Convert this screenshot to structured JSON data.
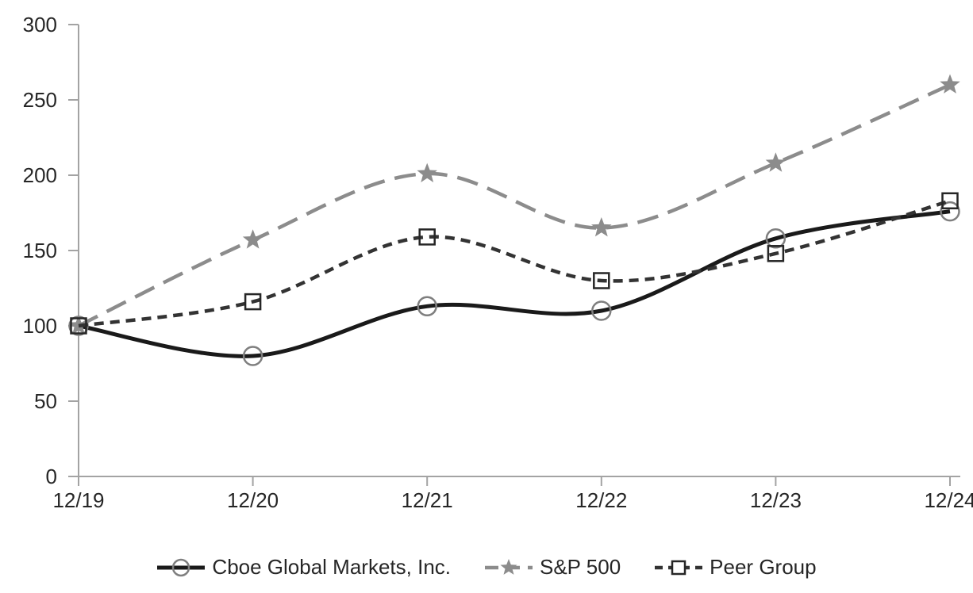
{
  "chart_data": {
    "type": "line",
    "title": "",
    "xlabel": "",
    "ylabel": "",
    "categories": [
      "12/19",
      "12/20",
      "12/21",
      "12/22",
      "12/23",
      "12/24"
    ],
    "series": [
      {
        "id": "cboe",
        "name": "Cboe Global Markets, Inc.",
        "values": [
          100,
          80,
          113,
          110,
          158,
          176
        ],
        "color": "#1a1a1a",
        "line_style": "solid",
        "marker": "circle",
        "marker_color": "#7f7f7f"
      },
      {
        "id": "sp500",
        "name": "S&P 500",
        "values": [
          100,
          157,
          201,
          165,
          208,
          260
        ],
        "color": "#8c8c8c",
        "line_style": "long-dash",
        "marker": "star",
        "marker_color": "#8c8c8c"
      },
      {
        "id": "peer-group",
        "name": "Peer Group",
        "values": [
          100,
          116,
          159,
          130,
          148,
          183
        ],
        "color": "#333333",
        "line_style": "short-dash",
        "marker": "square",
        "marker_color": "#262626"
      }
    ],
    "ylim": [
      0,
      300
    ],
    "yticks": [
      0,
      50,
      100,
      150,
      200,
      250,
      300
    ],
    "grid": false,
    "legend_position": "bottom"
  },
  "colors": {
    "axis": "#a3a3a3",
    "tick_label": "#262626",
    "background": "#ffffff"
  }
}
